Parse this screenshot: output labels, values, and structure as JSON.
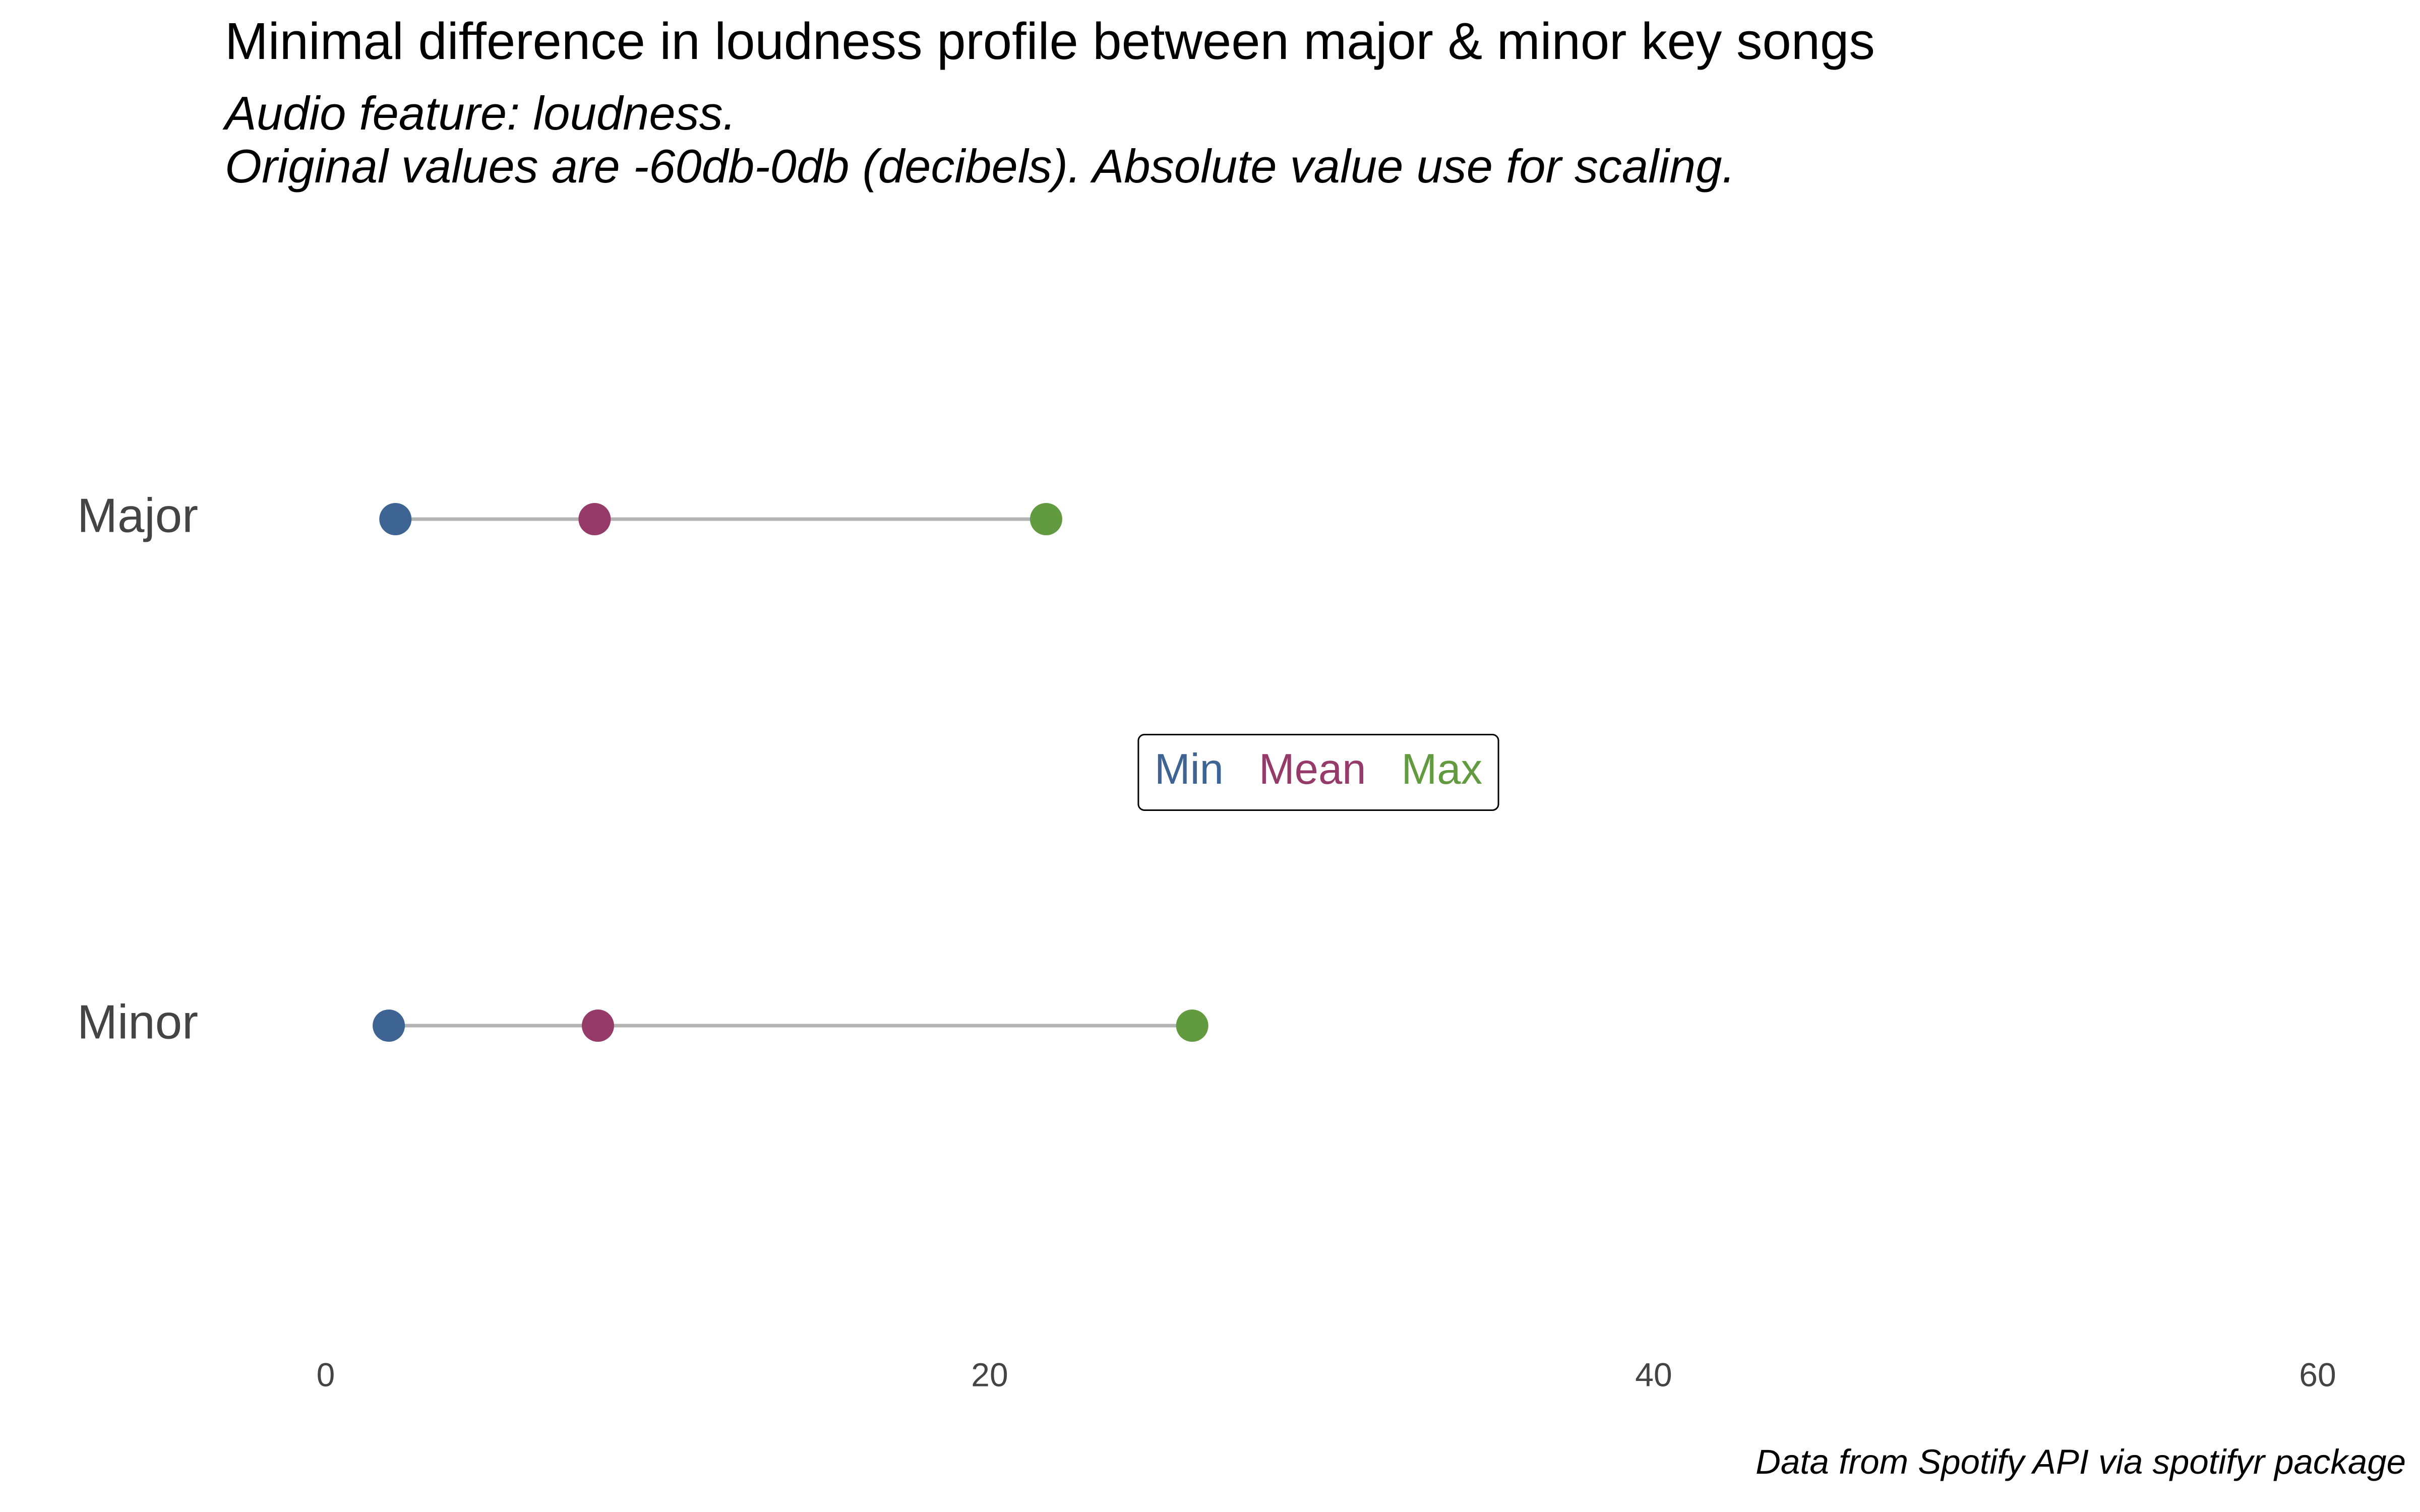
{
  "chart_data": {
    "type": "dumbbell",
    "title": "Minimal difference in loudness profile between major & minor key songs",
    "subtitle": [
      "Audio feature: loudness.",
      "Original values are -60db-0db (decibels). Absolute value use for scaling."
    ],
    "caption": "Data from Spotify API via spotifyr package",
    "categories": [
      "Major",
      "Minor"
    ],
    "series": [
      {
        "name": "Min",
        "color": "#3E6494",
        "values": [
          2.1,
          1.9
        ]
      },
      {
        "name": "Mean",
        "color": "#963A69",
        "values": [
          8.1,
          8.2
        ]
      },
      {
        "name": "Max",
        "color": "#629B3F",
        "values": [
          21.7,
          26.1
        ]
      }
    ],
    "segment_color": "#B3B3B3",
    "xlim": [
      -8,
      60
    ],
    "x_ticks": [
      0,
      20,
      40,
      60
    ],
    "x_tick_labels": [
      "0",
      "20",
      "40",
      "60"
    ],
    "grid": false,
    "legend": {
      "placement": "center",
      "boxed": true,
      "entries": [
        "Min",
        "Mean",
        "Max"
      ]
    }
  }
}
